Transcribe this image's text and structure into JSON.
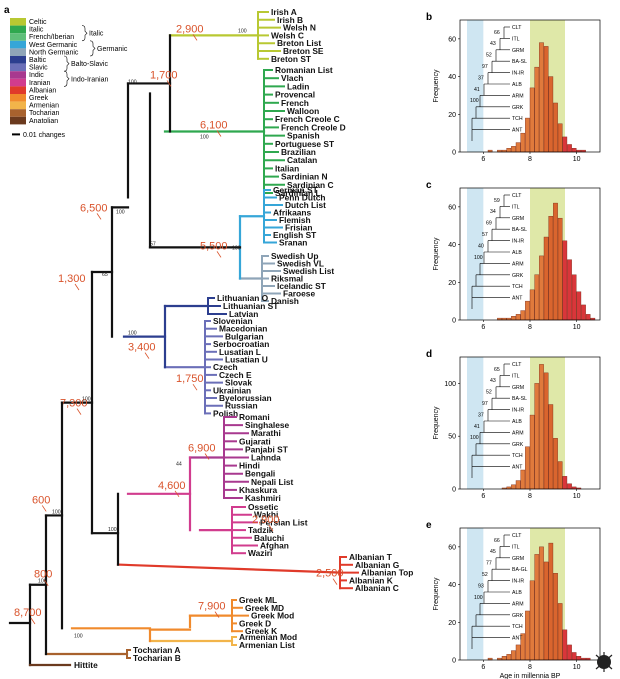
{
  "panel_labels": {
    "a": "a",
    "b": "b",
    "c": "c",
    "d": "d",
    "e": "e"
  },
  "legend": {
    "items": [
      {
        "label": "Celtic",
        "color": "#b8c832"
      },
      {
        "label": "Italic",
        "color": "#2fa84f"
      },
      {
        "label": "French/Iberian",
        "color": "#5fbf7a"
      },
      {
        "label": "West Germanic",
        "color": "#36a6d8"
      },
      {
        "label": "North Germanic",
        "color": "#8fa5b8"
      },
      {
        "label": "Baltic",
        "color": "#2c3e8f"
      },
      {
        "label": "Slavic",
        "color": "#6b6fb8"
      },
      {
        "label": "Indic",
        "color": "#a8398f"
      },
      {
        "label": "Iranian",
        "color": "#d13c8e"
      },
      {
        "label": "Albanian",
        "color": "#e03a2a"
      },
      {
        "label": "Greek",
        "color": "#f08a2c"
      },
      {
        "label": "Armenian",
        "color": "#f2b44a"
      },
      {
        "label": "Tocharian",
        "color": "#a8622e"
      },
      {
        "label": "Anatolian",
        "color": "#6b3a1e"
      }
    ],
    "groups": {
      "italic": "Italic",
      "germanic": "Germanic",
      "balto_slavic": "Balto-Slavic",
      "indo_iranian": "Indo-Iranian"
    },
    "scale_label": "0.01 changes"
  },
  "languages": {
    "celtic": [
      "Irish A",
      "Irish B",
      "Welsh N",
      "Welsh C",
      "Breton List",
      "Breton SE",
      "Breton ST"
    ],
    "italic": [
      "Romanian List",
      "Vlach",
      "Ladin",
      "Provencal",
      "French",
      "Walloon",
      "French Creole C",
      "French Creole D",
      "Spanish",
      "Portuguese ST",
      "Brazilian",
      "Catalan",
      "Italian",
      "Sardinian N",
      "Sardinian C",
      "Sardinian L"
    ],
    "germanic": [
      "German ST",
      "Penn Dutch",
      "Dutch List",
      "Afrikaans",
      "Flemish",
      "Frisian",
      "English ST",
      "Sranan",
      "Swedish Up",
      "Swedish VL",
      "Swedish List",
      "Riksmal",
      "Icelandic ST",
      "Faroese",
      "Danish"
    ],
    "balto_slavic": [
      "Lithuanian O",
      "Lithuanian ST",
      "Latvian",
      "Slovenian",
      "Macedonian",
      "Bulgarian",
      "Serbocroatian",
      "Lusatian L",
      "Lusatian U",
      "Czech",
      "Czech E",
      "Slovak",
      "Ukrainian",
      "Byelorussian",
      "Russian",
      "Polish"
    ],
    "indo_iranian": [
      "Romani",
      "Singhalese",
      "Marathi",
      "Gujarati",
      "Panjabi ST",
      "Lahnda",
      "Hindi",
      "Bengali",
      "Nepali List",
      "Khaskura",
      "Kashmiri",
      "Ossetic",
      "Wakhi",
      "Persian List",
      "Tadzik",
      "Baluchi",
      "Afghan",
      "Waziri"
    ],
    "albanian": [
      "Albanian T",
      "Albanian G",
      "Albanian Top",
      "Albanian K",
      "Albanian C"
    ],
    "greek": [
      "Greek ML",
      "Greek MD",
      "Greek Mod",
      "Greek D",
      "Greek K"
    ],
    "armenian": [
      "Armenian Mod",
      "Armenian List"
    ],
    "tocharian": [
      "Tocharian A",
      "Tocharian B"
    ],
    "anatolian": [
      "Hittite"
    ]
  },
  "date_labels": [
    "2,900",
    "6,100",
    "1,700",
    "5,500",
    "6,500",
    "1,750",
    "3,400",
    "1,300",
    "6,900",
    "2,900",
    "4,600",
    "2,500",
    "7,300",
    "7,900",
    "600",
    "800",
    "8,700",
    "1,700"
  ],
  "bootstrap": [
    "100",
    "100",
    "100",
    "57",
    "100",
    "100",
    "100",
    "65",
    "44",
    "100",
    "100",
    "100",
    "100",
    "100",
    "100",
    "64",
    "93",
    "99",
    "100",
    "96",
    "100",
    "100",
    "100",
    "100",
    "99",
    "100",
    "40",
    "35",
    "100",
    "100",
    "100",
    "100"
  ],
  "histograms": {
    "xlabel": "Age in millennia BP",
    "ylabel": "Frequency",
    "xticks": [
      "6",
      "8",
      "10"
    ],
    "panels": [
      {
        "id": "b",
        "yticks": [
          "0",
          "20",
          "40",
          "60"
        ],
        "mini_tree": [
          "CLT",
          "ITL",
          "GRM",
          "BA-SL",
          "IN-IR",
          "ALB",
          "ARM",
          "GRK",
          "TCH",
          "ANT"
        ],
        "mini_boot": [
          "66",
          "43",
          "52",
          "97",
          "37",
          "41",
          "100"
        ]
      },
      {
        "id": "c",
        "yticks": [
          "0",
          "20",
          "40",
          "60"
        ],
        "mini_tree": [
          "CLT",
          "ITL",
          "GRM",
          "BA-SL",
          "IN-IR",
          "ALB",
          "ARM",
          "GRK",
          "TCH",
          "ANT"
        ],
        "mini_boot": [
          "59",
          "34",
          "69",
          "57",
          "40",
          "100"
        ]
      },
      {
        "id": "d",
        "yticks": [
          "0",
          "50",
          "100"
        ],
        "mini_tree": [
          "CLT",
          "ITL",
          "GRM",
          "BA-SL",
          "IN-IR",
          "ALB",
          "ARM",
          "GRK",
          "TCH",
          "ANT"
        ],
        "mini_boot": [
          "65",
          "43",
          "52",
          "97",
          "37",
          "41",
          "100"
        ]
      },
      {
        "id": "e",
        "yticks": [
          "0",
          "20",
          "40",
          "60"
        ],
        "mini_tree": [
          "CLT",
          "ITL",
          "GRM",
          "BA-GL",
          "IN-IR",
          "ALB",
          "ARM",
          "GRK",
          "TCH",
          "ANT"
        ],
        "mini_boot": [
          "66",
          "45",
          "77",
          "52",
          "93",
          "100"
        ]
      }
    ]
  },
  "chart_data": [
    {
      "type": "bar",
      "panel": "b",
      "x": [
        6.2,
        6.4,
        6.6,
        6.8,
        7.0,
        7.2,
        7.4,
        7.6,
        7.8,
        8.0,
        8.2,
        8.4,
        8.6,
        8.8,
        9.0,
        9.2,
        9.4,
        9.6,
        9.8,
        10.0,
        10.2,
        10.4,
        10.6
      ],
      "values": [
        1,
        0,
        1,
        1,
        2,
        3,
        5,
        10,
        18,
        34,
        45,
        58,
        56,
        40,
        26,
        15,
        8,
        4,
        2,
        1,
        1,
        0,
        0
      ],
      "xlabel": "Age in millennia BP",
      "ylabel": "Frequency",
      "ylim": [
        0,
        70
      ],
      "xlim": [
        5,
        11
      ]
    },
    {
      "type": "bar",
      "panel": "c",
      "x": [
        6.6,
        6.8,
        7.0,
        7.2,
        7.4,
        7.6,
        7.8,
        8.0,
        8.2,
        8.4,
        8.6,
        8.8,
        9.0,
        9.2,
        9.4,
        9.6,
        9.8,
        10.0,
        10.2,
        10.4,
        10.6
      ],
      "values": [
        1,
        1,
        1,
        2,
        3,
        5,
        10,
        16,
        24,
        34,
        44,
        55,
        62,
        54,
        42,
        32,
        24,
        15,
        8,
        3,
        1
      ],
      "xlabel": "Age in millennia BP",
      "ylabel": "Frequency",
      "ylim": [
        0,
        70
      ],
      "xlim": [
        5,
        11
      ]
    },
    {
      "type": "bar",
      "panel": "d",
      "x": [
        6.8,
        7.0,
        7.2,
        7.4,
        7.6,
        7.8,
        8.0,
        8.2,
        8.4,
        8.6,
        8.8,
        9.0,
        9.2,
        9.4,
        9.6,
        9.8,
        10.0,
        10.2
      ],
      "values": [
        1,
        2,
        4,
        8,
        18,
        40,
        70,
        100,
        118,
        110,
        80,
        48,
        26,
        12,
        5,
        2,
        1,
        0
      ],
      "xlabel": "Age in millennia BP",
      "ylabel": "Frequency",
      "ylim": [
        0,
        125
      ],
      "xlim": [
        5,
        11
      ]
    },
    {
      "type": "bar",
      "panel": "e",
      "x": [
        6.2,
        6.4,
        6.6,
        6.8,
        7.0,
        7.2,
        7.4,
        7.6,
        7.8,
        8.0,
        8.2,
        8.4,
        8.6,
        8.8,
        9.0,
        9.2,
        9.4,
        9.6,
        9.8,
        10.0,
        10.2,
        10.4
      ],
      "values": [
        1,
        0,
        1,
        2,
        3,
        5,
        8,
        14,
        26,
        42,
        56,
        60,
        52,
        62,
        46,
        30,
        16,
        8,
        4,
        2,
        1,
        1
      ],
      "xlabel": "Age in millennia BP",
      "ylabel": "Frequency",
      "ylim": [
        0,
        70
      ],
      "xlim": [
        5,
        11
      ]
    }
  ]
}
